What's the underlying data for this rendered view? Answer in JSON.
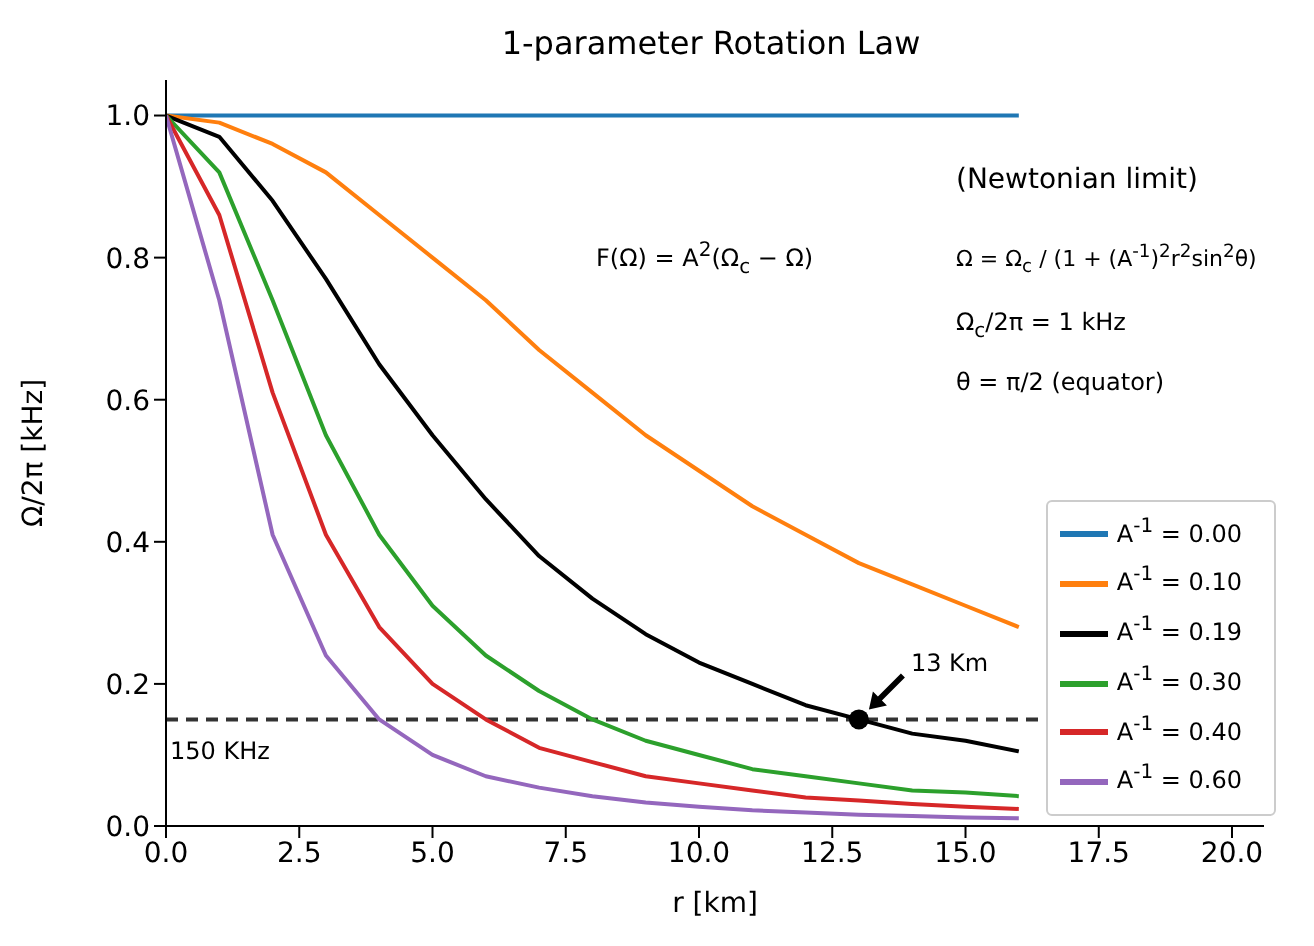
{
  "chart_data": {
    "type": "line",
    "title": "1-parameter Rotation Law",
    "xlabel": "r [km]",
    "ylabel": "Ω/2π [kHz]",
    "xlim": [
      0,
      20.6
    ],
    "xticks": [
      {
        "value": 0,
        "label": "0.0"
      },
      2.5,
      {
        "value": 5,
        "label": "5.0"
      },
      7.5,
      {
        "value": 10,
        "label": "10.0"
      },
      12.5,
      {
        "value": 15,
        "label": "15.0"
      },
      17.5,
      {
        "value": 20,
        "label": "20.0"
      }
    ],
    "ylim": [
      0,
      1.05
    ],
    "yticks": [
      {
        "value": 0,
        "label": "0.0"
      },
      0.2,
      0.4,
      0.6,
      0.8,
      {
        "value": 1,
        "label": "1.0"
      }
    ],
    "x": [
      0,
      1,
      2,
      3,
      4,
      5,
      6,
      7,
      8,
      9,
      10,
      11,
      12,
      13,
      14,
      15,
      16
    ],
    "series": [
      {
        "name": "A$^{-1}$ = 0.00",
        "color": "#1f77b4",
        "values": [
          1,
          1,
          1,
          1,
          1,
          1,
          1,
          1,
          1,
          1,
          1,
          1,
          1,
          1,
          1,
          1,
          1
        ]
      },
      {
        "name": "A$^{-1}$ = 0.10",
        "color": "#ff7f0e",
        "values": [
          1,
          0.99,
          0.96,
          0.92,
          0.86,
          0.8,
          0.74,
          0.67,
          0.61,
          0.55,
          0.5,
          0.45,
          0.41,
          0.37,
          0.34,
          0.31,
          0.28
        ]
      },
      {
        "name": "A$^{-1}$ = 0.19",
        "color": "#000000",
        "values": [
          1,
          0.97,
          0.88,
          0.77,
          0.65,
          0.55,
          0.46,
          0.38,
          0.32,
          0.27,
          0.23,
          0.2,
          0.17,
          0.15,
          0.13,
          0.12,
          0.105
        ]
      },
      {
        "name": "A$^{-1}$ = 0.30",
        "color": "#2ca02c",
        "values": [
          1,
          0.92,
          0.74,
          0.55,
          0.41,
          0.31,
          0.24,
          0.19,
          0.15,
          0.12,
          0.1,
          0.08,
          0.07,
          0.06,
          0.05,
          0.047,
          0.042
        ]
      },
      {
        "name": "A$^{-1}$ = 0.40",
        "color": "#d62728",
        "values": [
          1,
          0.86,
          0.61,
          0.41,
          0.28,
          0.2,
          0.15,
          0.11,
          0.09,
          0.07,
          0.06,
          0.05,
          0.04,
          0.036,
          0.031,
          0.027,
          0.024
        ]
      },
      {
        "name": "A$^{-1}$ = 0.60",
        "color": "#9467bd",
        "values": [
          1,
          0.74,
          0.41,
          0.24,
          0.15,
          0.1,
          0.07,
          0.054,
          0.042,
          0.033,
          0.027,
          0.022,
          0.019,
          0.016,
          0.014,
          0.012,
          0.011
        ]
      },
      {
        "type": "scatter",
        "color": "#000000",
        "marker": "circle",
        "x": [
          13
        ],
        "values": [
          0.15
        ]
      }
    ],
    "ref_lines": [
      {
        "axis": "y",
        "value": 0.15,
        "label": "150 KHz",
        "color": "#333333",
        "line_style": "dashed"
      }
    ],
    "annotations": [
      "F(Ω) = A$^{2}$(Ω$_{c}$ − Ω)",
      "(Newtonian limit)",
      "Ω = Ω$_{c}$ / (1 + (A$^{-1}$)$^{2}$r$^{2}$sin$^{2}$θ)",
      "Ω$_{c}$/2π = 1 kHz",
      "θ = π/2 (equator)",
      {
        "text": "13 Km",
        "x": 13,
        "y": 0.15
      }
    ],
    "legend": "bottom right",
    "grid": false
  }
}
